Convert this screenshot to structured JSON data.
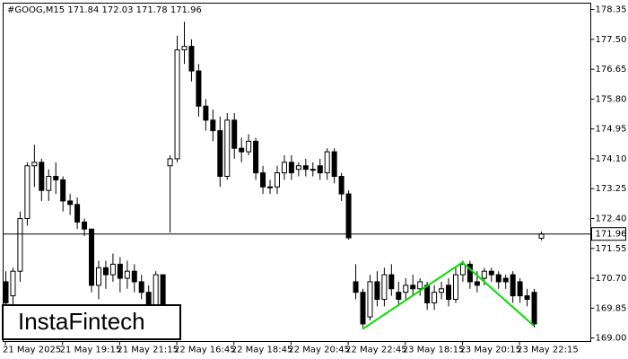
{
  "chart_data": {
    "type": "candlestick",
    "title": "#GOOG,M15  171.84 172.03 171.78 171.96",
    "logo": "InstaFintech",
    "categories": [
      "21 May 2025",
      null,
      null,
      null,
      null,
      null,
      null,
      null,
      "21 May 19:15",
      null,
      null,
      null,
      null,
      null,
      null,
      null,
      "21 May 21:15",
      null,
      null,
      null,
      null,
      null,
      null,
      null,
      "22 May 16:45",
      null,
      null,
      null,
      null,
      null,
      null,
      null,
      "22 May 18:45",
      null,
      null,
      null,
      null,
      null,
      null,
      null,
      "22 May 20:45",
      null,
      null,
      null,
      null,
      null,
      null,
      null,
      "22 May 22:45",
      null,
      null,
      null,
      null,
      null,
      null,
      null,
      "23 May 18:15",
      null,
      null,
      null,
      null,
      null,
      null,
      null,
      "23 May 20:15",
      null,
      null,
      null,
      null,
      null,
      null,
      null,
      "23 May 22:15",
      null,
      null,
      null
    ],
    "open": [
      170.6,
      170.2,
      170.9,
      172.4,
      173.9,
      174.0,
      173.2,
      173.6,
      173.5,
      172.9,
      172.8,
      172.3,
      172.1,
      170.5,
      171.0,
      170.8,
      171.1,
      170.7,
      170.9,
      170.6,
      170.3,
      169.8,
      170.8,
      173.9,
      174.1,
      177.2,
      177.3,
      176.6,
      175.6,
      175.2,
      174.9,
      173.6,
      175.2,
      174.4,
      174.3,
      174.6,
      173.7,
      173.3,
      173.3,
      173.7,
      174.0,
      173.8,
      173.9,
      173.8,
      173.9,
      173.7,
      174.3,
      173.6,
      173.1,
      170.6,
      170.3,
      169.6,
      170.6,
      170.1,
      170.8,
      170.3,
      170.3,
      170.5,
      170.4,
      170.5,
      170.0,
      170.3,
      170.5,
      170.1,
      170.8,
      171.1,
      170.6,
      170.7,
      170.9,
      170.8,
      170.7,
      170.8,
      170.6,
      170.2,
      170.3,
      171.84
    ],
    "high": [
      170.9,
      171.0,
      172.6,
      174.0,
      174.5,
      174.1,
      173.8,
      174.0,
      173.6,
      173.1,
      173.0,
      172.4,
      172.1,
      171.2,
      171.2,
      171.4,
      171.3,
      171.2,
      171.1,
      170.8,
      170.5,
      170.9,
      170.8,
      174.2,
      177.6,
      178.0,
      177.5,
      176.8,
      175.8,
      175.5,
      175.3,
      175.4,
      175.4,
      174.7,
      174.8,
      174.7,
      173.9,
      173.5,
      173.9,
      174.2,
      174.2,
      174.0,
      174.1,
      174.0,
      174.1,
      174.4,
      174.4,
      173.7,
      173.2,
      171.1,
      170.4,
      170.8,
      170.9,
      171.0,
      171.1,
      170.6,
      170.7,
      170.8,
      170.7,
      170.6,
      170.5,
      170.6,
      170.7,
      171.0,
      171.2,
      171.2,
      170.9,
      171.0,
      171.0,
      170.9,
      170.8,
      170.9,
      170.7,
      170.4,
      170.4,
      172.03
    ],
    "low": [
      169.8,
      169.9,
      170.6,
      172.2,
      173.3,
      172.9,
      172.9,
      173.1,
      172.6,
      172.5,
      172.1,
      171.9,
      170.3,
      170.1,
      170.4,
      170.6,
      170.3,
      170.4,
      170.3,
      170.1,
      169.6,
      169.6,
      169.6,
      172.0,
      174.0,
      176.8,
      176.3,
      175.3,
      174.9,
      174.6,
      173.3,
      173.5,
      174.1,
      174.0,
      174.2,
      173.5,
      173.1,
      173.1,
      173.1,
      173.5,
      173.5,
      173.6,
      173.6,
      173.6,
      173.5,
      173.5,
      173.4,
      172.9,
      171.8,
      170.1,
      169.3,
      169.5,
      169.9,
      169.9,
      170.2,
      169.9,
      170.1,
      170.2,
      170.2,
      169.8,
      169.8,
      170.1,
      169.9,
      170.0,
      170.6,
      170.4,
      170.3,
      170.5,
      170.6,
      170.4,
      170.4,
      170.0,
      170.0,
      169.9,
      169.3,
      171.78
    ],
    "close": [
      170.0,
      170.9,
      172.4,
      173.9,
      174.0,
      173.2,
      173.6,
      173.5,
      172.9,
      172.8,
      172.3,
      172.1,
      170.5,
      171.0,
      170.8,
      171.1,
      170.7,
      170.9,
      170.6,
      170.3,
      169.8,
      170.8,
      169.8,
      174.1,
      177.2,
      177.3,
      176.6,
      175.6,
      175.2,
      174.9,
      173.6,
      175.2,
      174.4,
      174.3,
      174.6,
      173.7,
      173.3,
      173.3,
      173.7,
      174.0,
      173.7,
      173.9,
      173.8,
      173.8,
      173.7,
      174.3,
      173.6,
      173.1,
      171.85,
      170.3,
      169.4,
      170.6,
      170.1,
      170.8,
      170.4,
      170.1,
      170.5,
      170.4,
      170.6,
      170.0,
      170.3,
      170.4,
      170.1,
      170.8,
      171.1,
      170.6,
      170.5,
      170.9,
      170.8,
      170.6,
      170.6,
      170.2,
      170.2,
      170.1,
      169.4,
      171.96
    ],
    "bull_color": "#ffffff",
    "bear_color": "#000000",
    "current_price": 171.96,
    "pattern": {
      "color": "#00e000",
      "at": [
        50,
        64,
        74
      ],
      "values": [
        169.25,
        171.15,
        169.35
      ]
    },
    "ylim": [
      168.9,
      178.53
    ],
    "yticks": [
      178.35,
      {
        "value": 177.5,
        "label": "177.50"
      },
      176.65,
      {
        "value": 175.8,
        "label": "175.80"
      },
      174.95,
      {
        "value": 174.1,
        "label": "174.10"
      },
      173.25,
      {
        "value": 172.4,
        "label": "172.40"
      },
      171.55,
      {
        "value": 170.7,
        "label": "170.70"
      },
      169.85,
      {
        "value": 169.0,
        "label": "169.00"
      }
    ]
  }
}
